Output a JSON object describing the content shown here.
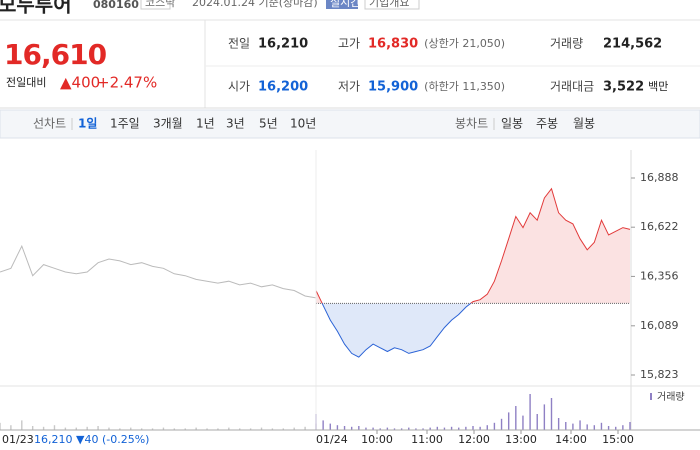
{
  "header": {
    "name": "모두투어",
    "code": "080160",
    "market": "코스닥",
    "date": "2024.01.24 기준(장마감)",
    "realtime": "실시간",
    "company": "기업개요"
  },
  "price": {
    "current": "16,610",
    "change_label": "전일대비",
    "change": "▲400",
    "rate": "+2.47%"
  },
  "stats": [
    {
      "label": "전일",
      "value": "16,210",
      "color": "#222222"
    },
    {
      "label": "고가",
      "value": "16,830",
      "note": "(상한가 21,050)",
      "color": "#e22926"
    },
    {
      "label": "거래량",
      "value": "214,562",
      "color": "#222222"
    },
    {
      "label": "시가",
      "value": "16,200",
      "color": "#1262d6"
    },
    {
      "label": "저가",
      "value": "15,900",
      "note": "(하한가 11,350)",
      "color": "#1262d6"
    },
    {
      "label": "거래대금",
      "value": "3,522",
      "unit": "백만",
      "color": "#222222"
    }
  ],
  "toolbar": {
    "line_chart": "선차트",
    "periods": [
      "1일",
      "1주일",
      "3개월",
      "1년",
      "3년",
      "5년",
      "10년"
    ],
    "candle_chart": "봉차트",
    "candles": [
      "일봉",
      "주봉",
      "월봉"
    ]
  },
  "chart_data": {
    "type": "line",
    "ylim": [
      15823,
      16888
    ],
    "yticks": [
      {
        "value": 16888,
        "label": "16,888"
      },
      {
        "value": 16622,
        "label": "16,622"
      },
      {
        "value": 16356,
        "label": "16,356"
      },
      {
        "value": 16089,
        "label": "16,089"
      },
      {
        "value": 15823,
        "label": "15,823"
      }
    ],
    "baseline": 16210,
    "up_color": "#e23b3b",
    "down_color": "#2b63d6",
    "prev_color": "#bbbbbb",
    "x_labels": [
      "10:00",
      "11:00",
      "12:00",
      "13:00",
      "14:00",
      "15:00"
    ],
    "volume_label": "거래량",
    "y2lim": [
      0,
      50000
    ],
    "prev_summary": "16,210 ▼40 (-0.25%)",
    "series": [
      {
        "name": "01/23",
        "values": [
          16380,
          16400,
          16520,
          16360,
          16420,
          16400,
          16380,
          16370,
          16380,
          16430,
          16450,
          16440,
          16420,
          16430,
          16410,
          16400,
          16370,
          16360,
          16340,
          16330,
          16320,
          16330,
          16310,
          16320,
          16300,
          16310,
          16290,
          16280,
          16250,
          16240
        ],
        "volume": [
          9000,
          6000,
          12000,
          5000,
          4000,
          6000,
          3000,
          3000,
          4000,
          5000,
          3000,
          2000,
          3000,
          2000,
          2000,
          3000,
          2000,
          2000,
          3000,
          2000,
          2000,
          3000,
          2000,
          2000,
          3000,
          2000,
          2000,
          3000,
          4000,
          8000
        ]
      },
      {
        "name": "01/24",
        "values": [
          16280,
          16200,
          16120,
          16060,
          15990,
          15940,
          15920,
          15960,
          15990,
          15970,
          15950,
          15970,
          15960,
          15940,
          15950,
          15960,
          15980,
          16030,
          16080,
          16120,
          16150,
          16190,
          16220,
          16230,
          16260,
          16330,
          16440,
          16560,
          16680,
          16620,
          16700,
          16660,
          16780,
          16830,
          16700,
          16660,
          16640,
          16560,
          16500,
          16540,
          16660,
          16580,
          16600,
          16620,
          16610
        ],
        "volume": [
          20000,
          12000,
          8000,
          6000,
          5000,
          4000,
          5000,
          3000,
          3000,
          2000,
          3000,
          2000,
          2000,
          3000,
          2000,
          2000,
          3000,
          4000,
          3000,
          4000,
          3000,
          4000,
          5000,
          4000,
          6000,
          9000,
          14000,
          22000,
          30000,
          18000,
          45000,
          20000,
          32000,
          40000,
          15000,
          10000,
          8000,
          12000,
          7000,
          6000,
          9000,
          5000,
          4000,
          6000,
          10000
        ]
      }
    ]
  }
}
